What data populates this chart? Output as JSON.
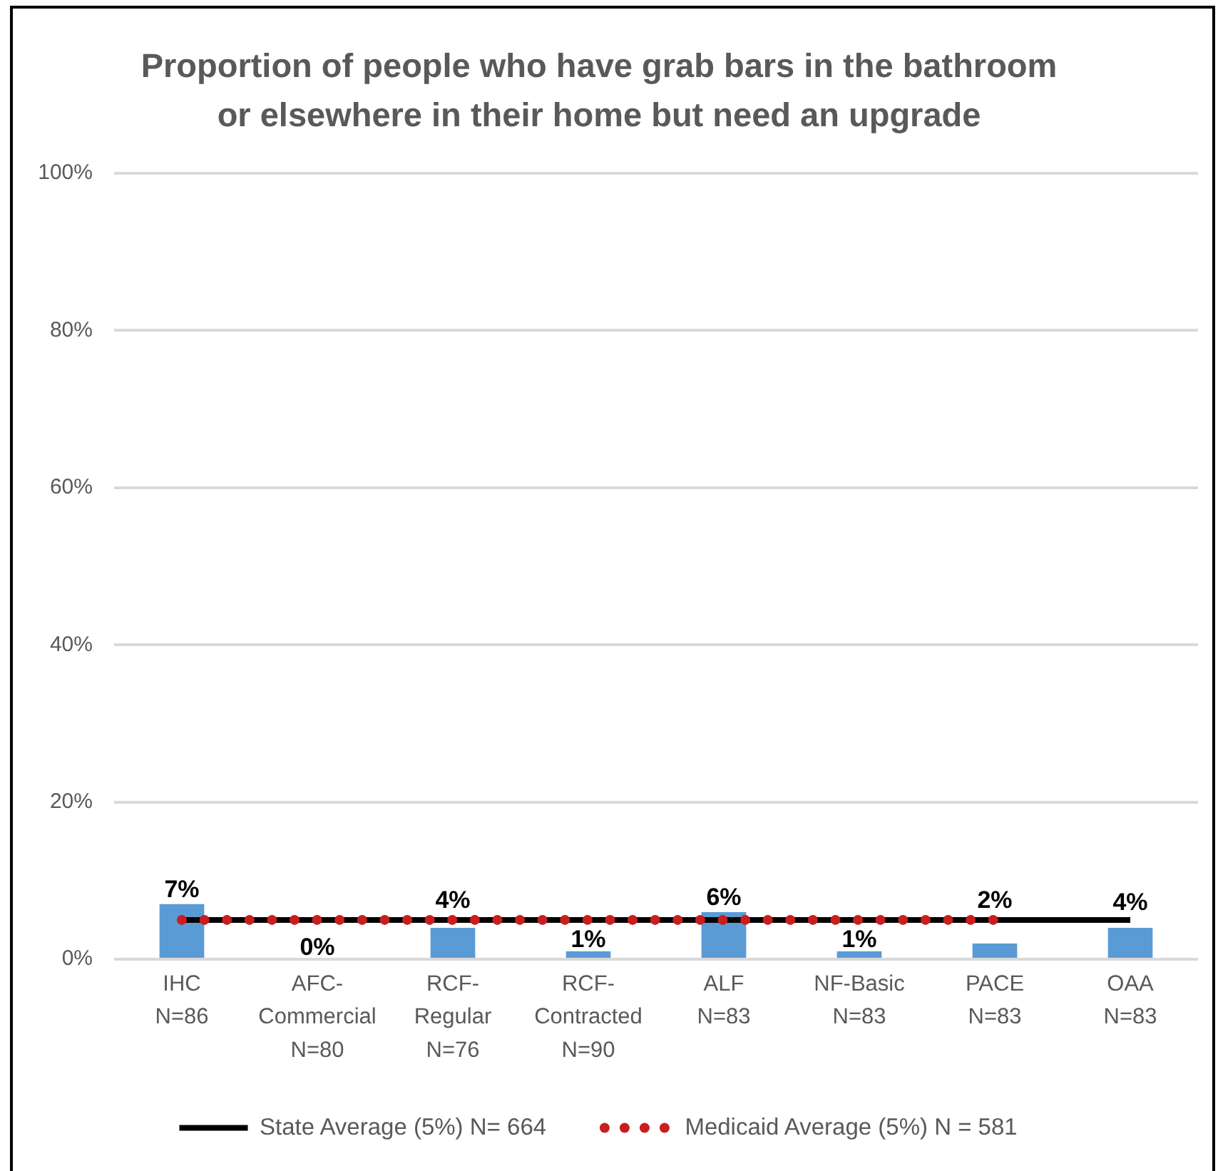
{
  "chart_data": {
    "type": "bar",
    "title": "Proportion of people who have grab bars in the bathroom\nor elsewhere in their home but need an upgrade",
    "categories": [
      "IHC\nN=86",
      "AFC-\nCommercial\nN=80",
      "RCF-\nRegular\nN=76",
      "RCF-\nContracted\nN=90",
      "ALF\nN=83",
      "NF-Basic\nN=83",
      "PACE\nN=83",
      "OAA\nN=83"
    ],
    "series": [
      {
        "type": "bar",
        "color": "#5b9bd5",
        "values": [
          7,
          0,
          4,
          1,
          6,
          1,
          2,
          4
        ],
        "value_labels": [
          "7%",
          "0%",
          "4%",
          "1%",
          "6%",
          "1%",
          "2%",
          "4%"
        ]
      },
      {
        "type": "line",
        "name": "State Average (5%) N= 664",
        "color": "#000000",
        "values": [
          5,
          5,
          5,
          5,
          5,
          5,
          5,
          5
        ],
        "line_style": "solid"
      },
      {
        "type": "line",
        "name": "Medicaid Average (5%) N = 581",
        "color": "#c81e1e",
        "values": [
          5,
          5,
          5,
          5,
          5,
          5,
          5,
          null
        ],
        "line_style": "dotted"
      }
    ],
    "ylim": [
      0,
      100
    ],
    "yticks": [
      {
        "value": 0,
        "label": "0%"
      },
      {
        "value": 20,
        "label": "20%"
      },
      {
        "value": 40,
        "label": "40%"
      },
      {
        "value": 60,
        "label": "60%"
      },
      {
        "value": 80,
        "label": "80%"
      },
      {
        "value": 100,
        "label": "100%"
      }
    ],
    "grid": "y",
    "legend": "bottom"
  }
}
